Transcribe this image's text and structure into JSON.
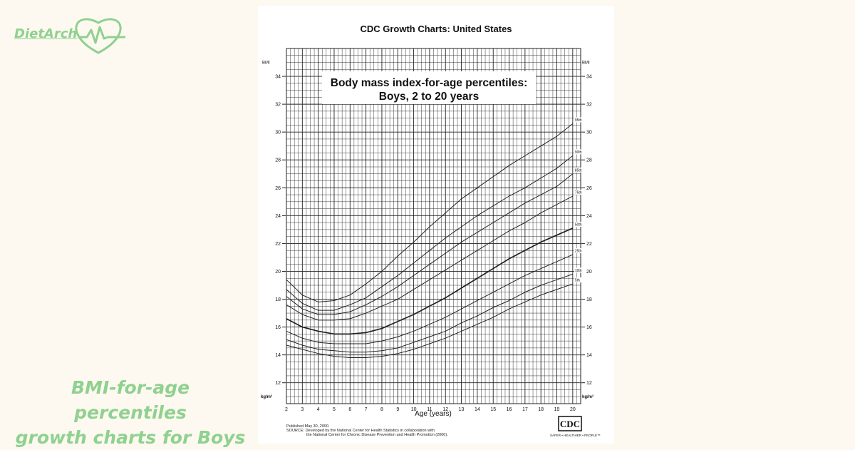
{
  "brand": {
    "name": "DietArch",
    "accent": "#8fd18f",
    "icon": "heart-pulse-icon"
  },
  "caption": {
    "line1": "BMI-for-age percentiles",
    "line2": "growth charts for Boys"
  },
  "sheet": {
    "header": "CDC Growth Charts: United States",
    "published": "Published May 30, 2000.",
    "source_line1": "SOURCE: Developed by the National Center for Health Statistics in collaboration with",
    "source_line2": "the National Center for Chronic Disease Prevention and Health Promotion (2000).",
    "cdc_logo_text": "CDC",
    "cdc_tagline": "SAFER • HEALTHIER • PEOPLE™"
  },
  "chart_data": {
    "type": "line",
    "title": "Body mass index-for-age percentiles:",
    "subtitle": "Boys, 2 to 20 years",
    "xlabel": "Age (years)",
    "ylabel_top": "BMI",
    "ylabel_bottom": "kg/m²",
    "xlim": [
      2,
      20.5
    ],
    "ylim": [
      10.5,
      36
    ],
    "x_ticks": [
      2,
      3,
      4,
      5,
      6,
      7,
      8,
      9,
      10,
      11,
      12,
      13,
      14,
      15,
      16,
      17,
      18,
      19,
      20
    ],
    "y_ticks": [
      12,
      14,
      16,
      18,
      20,
      22,
      24,
      26,
      28,
      30,
      32,
      34
    ],
    "grid": true,
    "x": [
      2,
      3,
      4,
      5,
      6,
      7,
      8,
      9,
      10,
      11,
      12,
      13,
      14,
      15,
      16,
      17,
      18,
      19,
      20
    ],
    "series": [
      {
        "name": "95th",
        "values": [
          19.4,
          18.3,
          17.8,
          17.9,
          18.3,
          19.1,
          20.0,
          21.1,
          22.1,
          23.2,
          24.2,
          25.2,
          26.0,
          26.8,
          27.6,
          28.3,
          29.0,
          29.7,
          30.6
        ]
      },
      {
        "name": "90th",
        "values": [
          18.7,
          17.7,
          17.2,
          17.2,
          17.6,
          18.1,
          18.9,
          19.7,
          20.6,
          21.5,
          22.4,
          23.2,
          24.0,
          24.7,
          25.4,
          26.0,
          26.7,
          27.4,
          28.3
        ]
      },
      {
        "name": "85th",
        "values": [
          18.2,
          17.3,
          16.9,
          16.9,
          17.1,
          17.6,
          18.2,
          18.9,
          19.7,
          20.5,
          21.3,
          22.1,
          22.8,
          23.5,
          24.2,
          24.9,
          25.5,
          26.1,
          27.0
        ]
      },
      {
        "name": "75th",
        "values": [
          17.6,
          16.9,
          16.5,
          16.5,
          16.6,
          17.0,
          17.5,
          18.0,
          18.7,
          19.4,
          20.1,
          20.8,
          21.5,
          22.2,
          22.9,
          23.5,
          24.2,
          24.8,
          25.4
        ]
      },
      {
        "name": "50th",
        "values": [
          16.6,
          16.0,
          15.7,
          15.5,
          15.5,
          15.6,
          15.9,
          16.4,
          16.9,
          17.5,
          18.1,
          18.8,
          19.5,
          20.2,
          20.9,
          21.5,
          22.1,
          22.6,
          23.1
        ]
      },
      {
        "name": "25th",
        "values": [
          15.7,
          15.2,
          14.9,
          14.8,
          14.8,
          14.8,
          15.0,
          15.3,
          15.7,
          16.2,
          16.7,
          17.3,
          17.9,
          18.5,
          19.1,
          19.7,
          20.2,
          20.7,
          21.2
        ]
      },
      {
        "name": "10th",
        "values": [
          15.1,
          14.7,
          14.4,
          14.3,
          14.2,
          14.2,
          14.3,
          14.5,
          14.9,
          15.3,
          15.7,
          16.3,
          16.8,
          17.4,
          17.9,
          18.5,
          19.0,
          19.4,
          19.8
        ]
      },
      {
        "name": "5th",
        "values": [
          14.7,
          14.4,
          14.1,
          13.9,
          13.8,
          13.8,
          13.9,
          14.1,
          14.4,
          14.8,
          15.2,
          15.7,
          16.2,
          16.7,
          17.3,
          17.8,
          18.3,
          18.7,
          19.1
        ]
      }
    ]
  }
}
